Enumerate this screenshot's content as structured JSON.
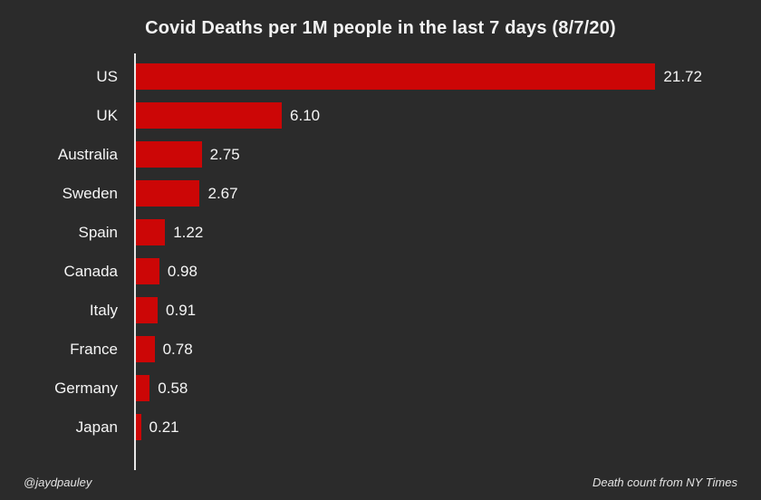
{
  "page": {
    "background": "#2b2b2b",
    "text_color": "#f5f5f5"
  },
  "chart_data": {
    "type": "bar",
    "orientation": "horizontal",
    "title": "Covid Deaths per 1M people in the last 7 days (8/7/20)",
    "categories": [
      "US",
      "UK",
      "Australia",
      "Sweden",
      "Spain",
      "Canada",
      "Italy",
      "France",
      "Germany",
      "Japan"
    ],
    "values": [
      21.72,
      6.1,
      2.75,
      2.67,
      1.22,
      0.98,
      0.91,
      0.78,
      0.58,
      0.21
    ],
    "value_labels": [
      "21.72",
      "6.10",
      "2.75",
      "2.67",
      "1.22",
      "0.98",
      "0.91",
      "0.78",
      "0.58",
      "0.21"
    ],
    "xlabel": "",
    "ylabel": "",
    "xlim": [
      0,
      25
    ],
    "bar_color": "#cc0606",
    "axis_color": "#e8e8e8",
    "grid": false,
    "legend": "none",
    "data_labels": true
  },
  "footer": {
    "left": "@jaydpauley",
    "right": "Death count from NY Times"
  }
}
